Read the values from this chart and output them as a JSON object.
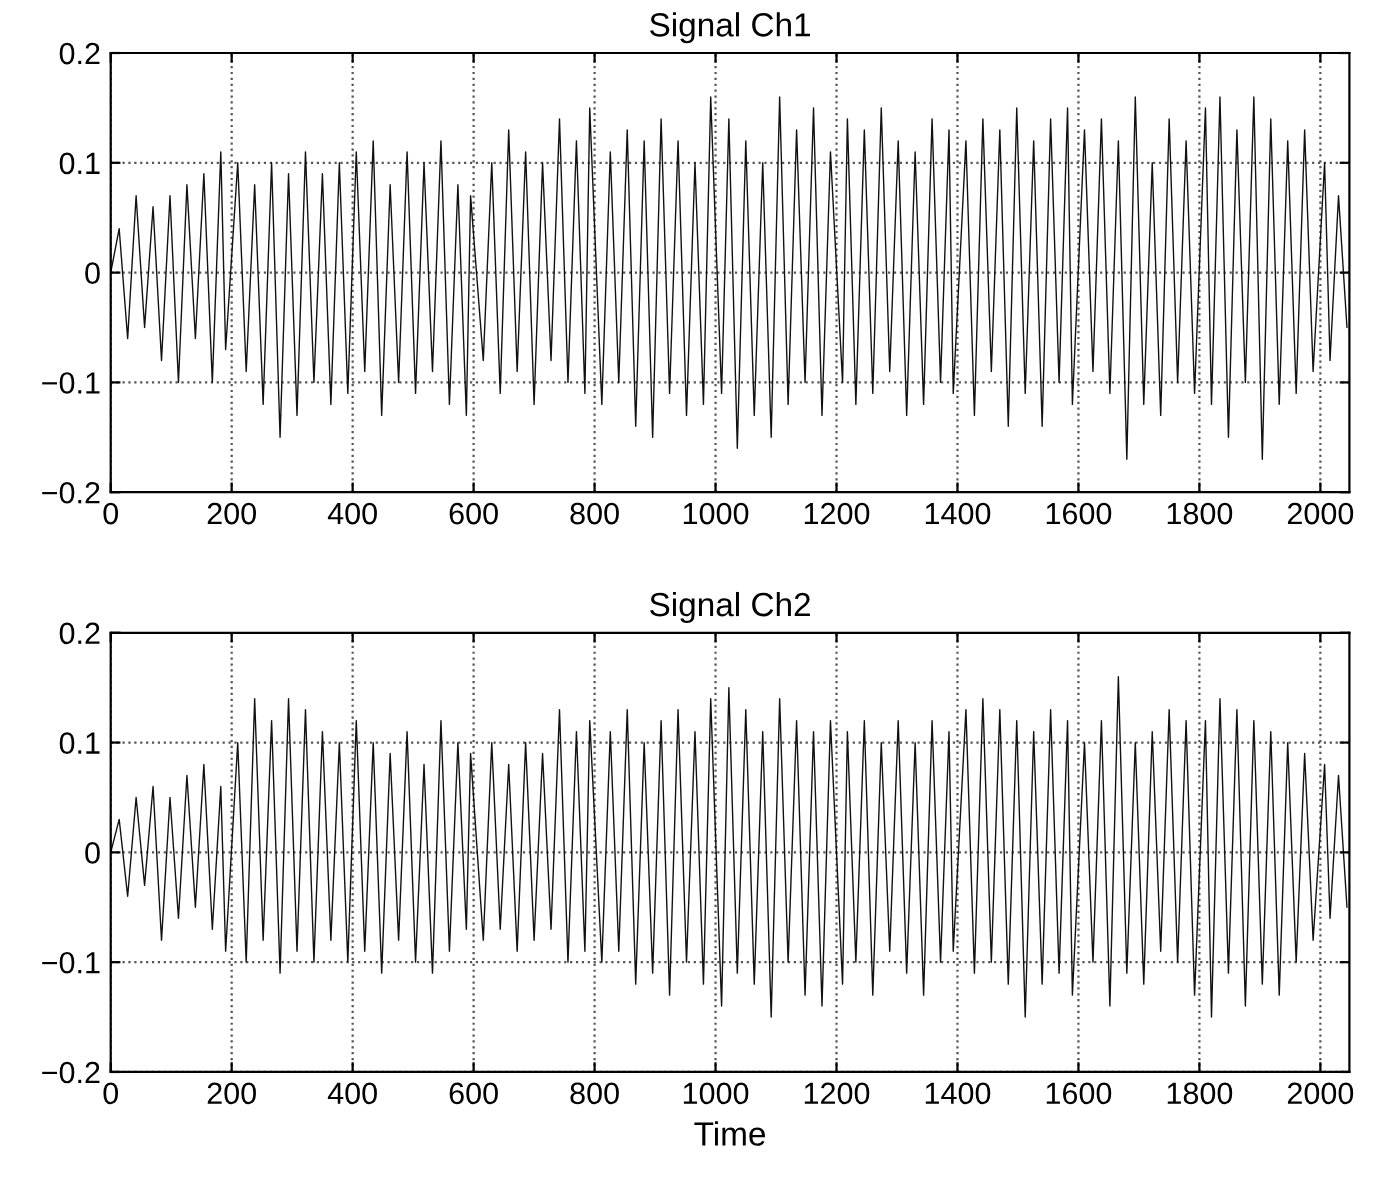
{
  "chart_data": [
    {
      "type": "line",
      "title": "Signal Ch1",
      "xlim": [
        0,
        2048
      ],
      "ylim": [
        -0.2,
        0.2
      ],
      "xticks": [
        0,
        200,
        400,
        600,
        800,
        1000,
        1200,
        1400,
        1600,
        1800,
        2000
      ],
      "yticks": [
        -0.2,
        -0.1,
        0,
        0.1,
        0.2
      ],
      "grid": true,
      "line_style": "solid",
      "x": [
        0,
        14,
        28,
        42,
        56,
        70,
        84,
        98,
        112,
        126,
        140,
        154,
        168,
        182,
        190,
        210,
        224,
        238,
        252,
        266,
        280,
        294,
        308,
        322,
        336,
        350,
        364,
        378,
        392,
        406,
        420,
        434,
        448,
        462,
        476,
        490,
        504,
        518,
        532,
        546,
        560,
        574,
        588,
        595,
        616,
        630,
        644,
        658,
        672,
        686,
        700,
        714,
        728,
        742,
        756,
        770,
        784,
        792,
        812,
        826,
        840,
        854,
        868,
        882,
        896,
        910,
        924,
        938,
        952,
        966,
        980,
        992,
        1010,
        1022,
        1036,
        1050,
        1064,
        1078,
        1092,
        1106,
        1120,
        1134,
        1148,
        1162,
        1176,
        1190,
        1210,
        1218,
        1232,
        1246,
        1260,
        1274,
        1288,
        1302,
        1316,
        1330,
        1344,
        1358,
        1372,
        1386,
        1393,
        1414,
        1428,
        1442,
        1456,
        1470,
        1484,
        1498,
        1512,
        1526,
        1540,
        1554,
        1568,
        1582,
        1590,
        1610,
        1624,
        1638,
        1652,
        1666,
        1680,
        1694,
        1708,
        1722,
        1736,
        1750,
        1764,
        1778,
        1792,
        1810,
        1820,
        1834,
        1848,
        1862,
        1876,
        1890,
        1904,
        1918,
        1932,
        1946,
        1960,
        1974,
        1988,
        2007,
        2016,
        2030,
        2044
      ],
      "series": [
        {
          "color": "#111111",
          "values": [
            0,
            0.04,
            -0.06,
            0.07,
            -0.05,
            0.06,
            -0.08,
            0.07,
            -0.1,
            0.08,
            -0.06,
            0.09,
            -0.1,
            0.11,
            -0.07,
            0.1,
            -0.09,
            0.08,
            -0.12,
            0.1,
            -0.15,
            0.09,
            -0.13,
            0.11,
            -0.1,
            0.09,
            -0.12,
            0.1,
            -0.11,
            0.11,
            -0.09,
            0.12,
            -0.13,
            0.08,
            -0.1,
            0.11,
            -0.11,
            0.1,
            -0.09,
            0.12,
            -0.12,
            0.08,
            -0.13,
            0.07,
            -0.08,
            0.1,
            -0.11,
            0.13,
            -0.09,
            0.11,
            -0.12,
            0.1,
            -0.08,
            0.14,
            -0.1,
            0.12,
            -0.11,
            0.15,
            -0.12,
            0.11,
            -0.1,
            0.13,
            -0.14,
            0.12,
            -0.15,
            0.14,
            -0.11,
            0.12,
            -0.13,
            0.1,
            -0.12,
            0.16,
            -0.11,
            0.14,
            -0.16,
            0.12,
            -0.13,
            0.1,
            -0.15,
            0.16,
            -0.12,
            0.13,
            -0.1,
            0.15,
            -0.13,
            0.11,
            -0.1,
            0.14,
            -0.12,
            0.13,
            -0.11,
            0.15,
            -0.09,
            0.12,
            -0.13,
            0.11,
            -0.12,
            0.14,
            -0.1,
            0.13,
            -0.11,
            0.12,
            -0.13,
            0.14,
            -0.09,
            0.13,
            -0.14,
            0.15,
            -0.11,
            0.12,
            -0.14,
            0.14,
            -0.1,
            0.15,
            -0.12,
            0.13,
            -0.09,
            0.14,
            -0.11,
            0.12,
            -0.17,
            0.16,
            -0.12,
            0.1,
            -0.13,
            0.14,
            -0.1,
            0.12,
            -0.11,
            0.15,
            -0.12,
            0.16,
            -0.15,
            0.13,
            -0.1,
            0.16,
            -0.17,
            0.14,
            -0.12,
            0.12,
            -0.11,
            0.13,
            -0.09,
            0.1,
            -0.08,
            0.07,
            -0.05
          ]
        }
      ]
    },
    {
      "type": "line",
      "title": "Signal Ch2",
      "xlabel": "Time",
      "xlim": [
        0,
        2048
      ],
      "ylim": [
        -0.2,
        0.2
      ],
      "xticks": [
        0,
        200,
        400,
        600,
        800,
        1000,
        1200,
        1400,
        1600,
        1800,
        2000
      ],
      "yticks": [
        -0.2,
        -0.1,
        0,
        0.1,
        0.2
      ],
      "grid": true,
      "line_style": "solid",
      "x": [
        0,
        14,
        28,
        42,
        56,
        70,
        84,
        98,
        112,
        126,
        140,
        154,
        168,
        182,
        190,
        210,
        224,
        238,
        252,
        266,
        280,
        294,
        308,
        322,
        336,
        350,
        364,
        378,
        392,
        406,
        420,
        434,
        448,
        462,
        476,
        490,
        504,
        518,
        532,
        546,
        560,
        574,
        588,
        595,
        616,
        630,
        644,
        658,
        672,
        686,
        700,
        714,
        728,
        742,
        756,
        770,
        784,
        792,
        812,
        826,
        840,
        854,
        868,
        882,
        896,
        910,
        924,
        938,
        952,
        966,
        980,
        992,
        1010,
        1022,
        1036,
        1050,
        1064,
        1078,
        1092,
        1106,
        1120,
        1134,
        1148,
        1162,
        1176,
        1190,
        1210,
        1218,
        1232,
        1246,
        1260,
        1274,
        1288,
        1302,
        1316,
        1330,
        1344,
        1358,
        1372,
        1386,
        1393,
        1414,
        1428,
        1442,
        1456,
        1470,
        1484,
        1498,
        1512,
        1526,
        1540,
        1554,
        1568,
        1582,
        1590,
        1610,
        1624,
        1638,
        1652,
        1666,
        1680,
        1694,
        1708,
        1722,
        1736,
        1750,
        1764,
        1778,
        1792,
        1810,
        1820,
        1834,
        1848,
        1862,
        1876,
        1890,
        1904,
        1918,
        1932,
        1946,
        1960,
        1974,
        1988,
        2007,
        2016,
        2030,
        2044
      ],
      "series": [
        {
          "color": "#111111",
          "values": [
            0,
            0.03,
            -0.04,
            0.05,
            -0.03,
            0.06,
            -0.08,
            0.05,
            -0.06,
            0.07,
            -0.05,
            0.08,
            -0.07,
            0.06,
            -0.09,
            0.1,
            -0.1,
            0.14,
            -0.08,
            0.12,
            -0.11,
            0.14,
            -0.09,
            0.13,
            -0.1,
            0.11,
            -0.08,
            0.1,
            -0.1,
            0.12,
            -0.09,
            0.1,
            -0.11,
            0.09,
            -0.08,
            0.11,
            -0.1,
            0.08,
            -0.11,
            0.12,
            -0.09,
            0.1,
            -0.07,
            0.09,
            -0.08,
            0.1,
            -0.07,
            0.08,
            -0.09,
            0.1,
            -0.08,
            0.09,
            -0.07,
            0.13,
            -0.1,
            0.11,
            -0.09,
            0.12,
            -0.1,
            0.11,
            -0.09,
            0.13,
            -0.12,
            0.1,
            -0.11,
            0.12,
            -0.13,
            0.13,
            -0.1,
            0.11,
            -0.12,
            0.14,
            -0.14,
            0.15,
            -0.11,
            0.13,
            -0.12,
            0.11,
            -0.15,
            0.14,
            -0.1,
            0.12,
            -0.13,
            0.11,
            -0.14,
            0.12,
            -0.12,
            0.11,
            -0.1,
            0.12,
            -0.13,
            0.1,
            -0.09,
            0.12,
            -0.11,
            0.1,
            -0.13,
            0.12,
            -0.1,
            0.11,
            -0.09,
            0.13,
            -0.11,
            0.14,
            -0.1,
            0.13,
            -0.12,
            0.12,
            -0.15,
            0.11,
            -0.12,
            0.13,
            -0.11,
            0.12,
            -0.13,
            0.1,
            -0.1,
            0.12,
            -0.14,
            0.16,
            -0.11,
            0.1,
            -0.12,
            0.11,
            -0.09,
            0.13,
            -0.1,
            0.12,
            -0.13,
            0.12,
            -0.15,
            0.14,
            -0.11,
            0.13,
            -0.14,
            0.12,
            -0.12,
            0.11,
            -0.13,
            0.1,
            -0.1,
            0.09,
            -0.08,
            0.08,
            -0.06,
            0.07,
            -0.05
          ]
        }
      ]
    }
  ]
}
